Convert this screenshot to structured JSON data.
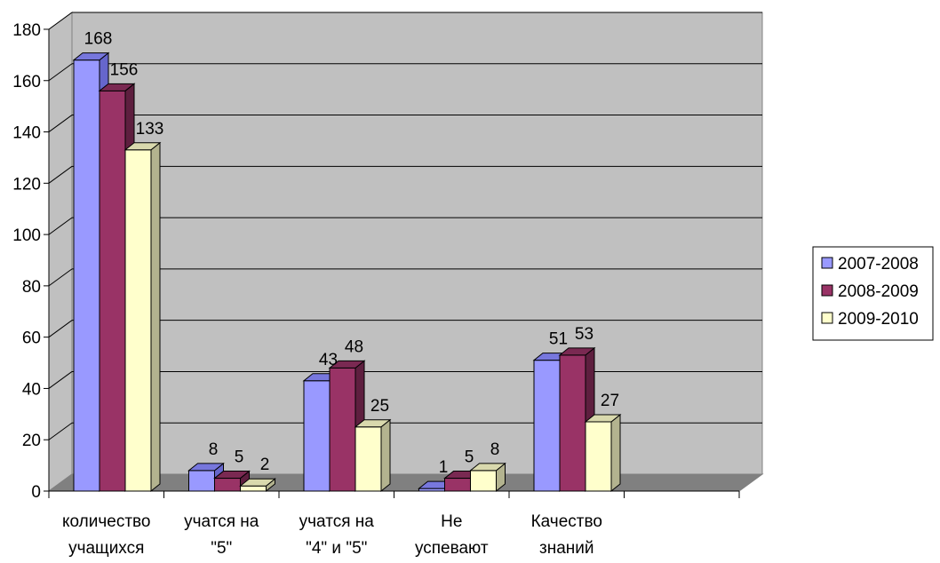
{
  "chart_data": {
    "type": "bar",
    "categories": [
      [
        "количество",
        "учащихся"
      ],
      [
        "учатся на",
        "\"5\""
      ],
      [
        "учатся на",
        "\"4\" и \"5\""
      ],
      [
        "Не",
        "успевают"
      ],
      [
        "Качество",
        "знаний"
      ]
    ],
    "series": [
      {
        "name": "2007-2008",
        "values": [
          168,
          8,
          43,
          1,
          51
        ],
        "color": "#9999ff",
        "side": "#6666cc",
        "top": "#7777dd"
      },
      {
        "name": "2008-2009",
        "values": [
          156,
          5,
          48,
          5,
          53
        ],
        "color": "#993366",
        "side": "#5e1f3f",
        "top": "#7a2952"
      },
      {
        "name": "2009-2010",
        "values": [
          133,
          2,
          25,
          8,
          27
        ],
        "color": "#ffffcc",
        "side": "#b3b38f",
        "top": "#d9d9ad"
      }
    ],
    "yticks": [
      0,
      20,
      40,
      60,
      80,
      100,
      120,
      140,
      160,
      180
    ],
    "ylim": [
      0,
      180
    ],
    "grid": true,
    "legend": "right",
    "wall_color": "#c0c0c0",
    "floor_color": "#808080"
  }
}
